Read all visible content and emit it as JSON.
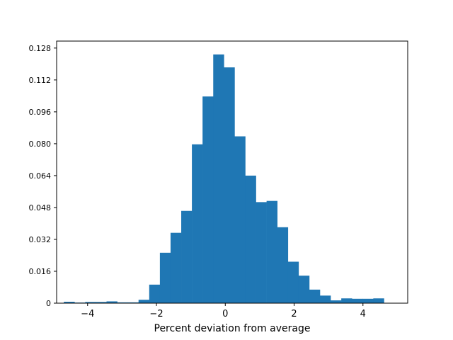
{
  "chart_data": {
    "type": "bar",
    "title": "",
    "xlabel": "Percent deviation from average",
    "ylabel": "",
    "xlim": [
      -4.9,
      5.3
    ],
    "ylim": [
      0,
      0.1315
    ],
    "grid": false,
    "bar_color": "#1f77b4",
    "x_ticks": [
      {
        "value": -4,
        "label": "−4"
      },
      {
        "value": -2,
        "label": "−2"
      },
      {
        "value": 0,
        "label": "0"
      },
      {
        "value": 2,
        "label": "2"
      },
      {
        "value": 4,
        "label": "4"
      }
    ],
    "y_ticks": [
      {
        "value": 0,
        "label": "0"
      },
      {
        "value": 0.016,
        "label": "0.016"
      },
      {
        "value": 0.032,
        "label": "0.032"
      },
      {
        "value": 0.048,
        "label": "0.048"
      },
      {
        "value": 0.064,
        "label": "0.064"
      },
      {
        "value": 0.08,
        "label": "0.080"
      },
      {
        "value": 0.096,
        "label": "0.096"
      },
      {
        "value": 0.112,
        "label": "0.112"
      },
      {
        "value": 0.128,
        "label": "0.128"
      }
    ],
    "bin_edges": [
      -4.69,
      -4.38,
      -4.07,
      -3.76,
      -3.45,
      -3.14,
      -2.83,
      -2.52,
      -2.21,
      -1.9,
      -1.59,
      -1.28,
      -0.97,
      -0.66,
      -0.35,
      -0.04,
      0.27,
      0.58,
      0.89,
      1.2,
      1.51,
      1.82,
      2.13,
      2.44,
      2.75,
      3.06,
      3.37,
      3.68,
      3.99,
      4.3,
      4.61
    ],
    "values": [
      0.0007,
      0.0003,
      0.0006,
      0.0006,
      0.0009,
      0.0004,
      0.0004,
      0.0017,
      0.0093,
      0.0253,
      0.0353,
      0.0463,
      0.0797,
      0.1037,
      0.1248,
      0.1183,
      0.0837,
      0.064,
      0.0507,
      0.0513,
      0.0381,
      0.0208,
      0.0138,
      0.0068,
      0.0038,
      0.0014,
      0.0024,
      0.0022,
      0.0022,
      0.0024,
      0.0022
    ]
  }
}
